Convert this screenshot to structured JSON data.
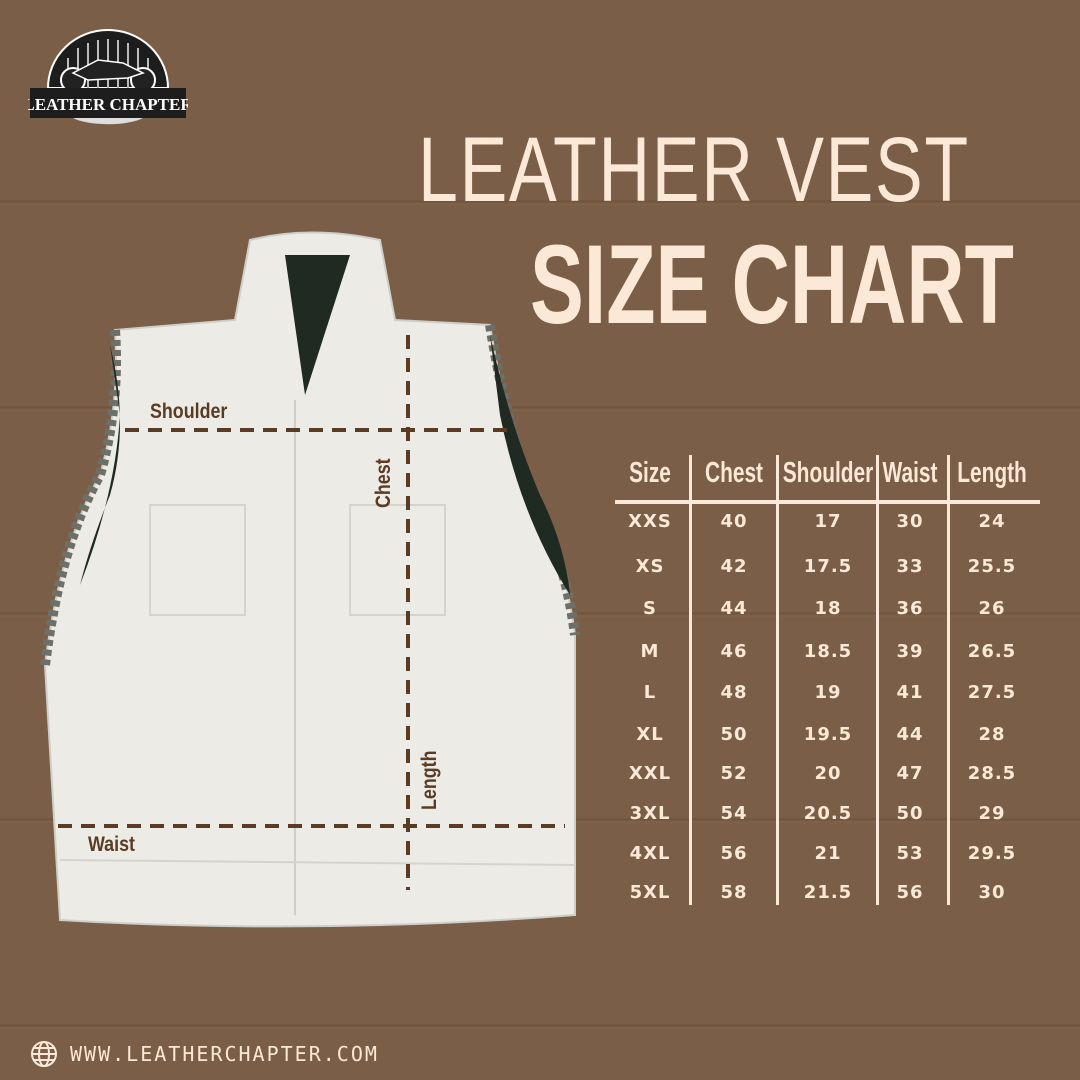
{
  "brand": {
    "logo_text": "LEATHER CHAPTER"
  },
  "title": {
    "line1": "LEATHER VEST",
    "line2": "SIZE CHART"
  },
  "measure_labels": {
    "shoulder": "Shoulder",
    "chest": "Chest",
    "length": "Length",
    "waist": "Waist"
  },
  "table": {
    "headers": [
      "Size",
      "Chest",
      "Shoulder",
      "Waist",
      "Length"
    ],
    "rows": [
      [
        "XXS",
        "40",
        "17",
        "30",
        "24"
      ],
      [
        "XS",
        "42",
        "17.5",
        "33",
        "25.5"
      ],
      [
        "S",
        "44",
        "18",
        "36",
        "26"
      ],
      [
        "M",
        "46",
        "18.5",
        "39",
        "26.5"
      ],
      [
        "L",
        "48",
        "19",
        "41",
        "27.5"
      ],
      [
        "XL",
        "50",
        "19.5",
        "44",
        "28"
      ],
      [
        "XXL",
        "52",
        "20",
        "47",
        "28.5"
      ],
      [
        "3XL",
        "54",
        "20.5",
        "50",
        "29"
      ],
      [
        "4XL",
        "56",
        "21",
        "53",
        "29.5"
      ],
      [
        "5XL",
        "58",
        "21.5",
        "56",
        "30"
      ]
    ]
  },
  "footer": {
    "icon": "globe-icon",
    "url": "WWW.LEATHERCHAPTER.COM"
  },
  "colors": {
    "background": "#7b5e47",
    "text": "#fbe8d6",
    "measure": "#5a3b24",
    "vest": "#ecebe6"
  }
}
